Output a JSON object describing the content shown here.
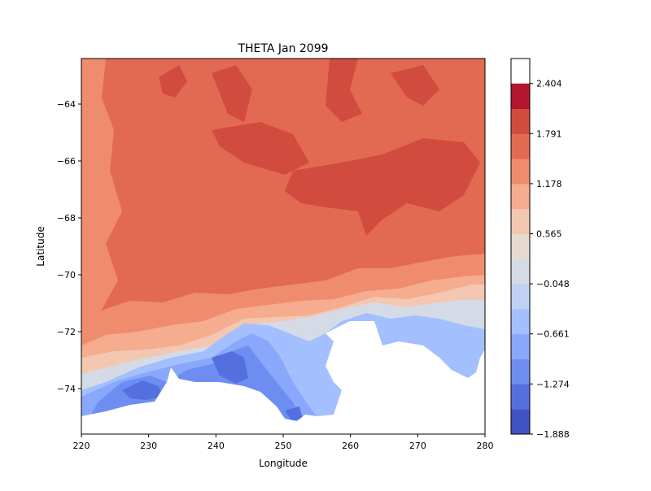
{
  "chart_data": {
    "type": "heatmap",
    "title": "THETA Jan 2099",
    "xlabel": "Longitude",
    "ylabel": "Latitude",
    "xlim": [
      220,
      280
    ],
    "ylim": [
      -75.6,
      -62.4
    ],
    "x_ticks": [
      {
        "value": 220,
        "label": "220"
      },
      {
        "value": 230,
        "label": "230"
      },
      {
        "value": 240,
        "label": "240"
      },
      {
        "value": 250,
        "label": "250"
      },
      {
        "value": 260,
        "label": "260"
      },
      {
        "value": 270,
        "label": "270"
      },
      {
        "value": 280,
        "label": "280"
      }
    ],
    "y_ticks": [
      {
        "value": -64,
        "label": "−64"
      },
      {
        "value": -66,
        "label": "−66"
      },
      {
        "value": -68,
        "label": "−68"
      },
      {
        "value": -70,
        "label": "−70"
      },
      {
        "value": -72,
        "label": "−72"
      },
      {
        "value": -74,
        "label": "−74"
      }
    ],
    "colorbar": {
      "range": [
        -1.888,
        2.71
      ],
      "levels": [
        -1.888,
        -1.581,
        -1.274,
        -0.968,
        -0.661,
        -0.355,
        -0.048,
        0.259,
        0.565,
        0.872,
        1.178,
        1.485,
        1.791,
        2.098,
        2.404,
        2.71
      ],
      "tick_labels": [
        {
          "value": -1.888,
          "label": "−1.888"
        },
        {
          "value": -1.274,
          "label": "−1.274"
        },
        {
          "value": -0.661,
          "label": "−0.661"
        },
        {
          "value": -0.048,
          "label": "−0.048"
        },
        {
          "value": 0.565,
          "label": "0.565"
        },
        {
          "value": 1.178,
          "label": "1.178"
        },
        {
          "value": 1.791,
          "label": "1.791"
        },
        {
          "value": 2.404,
          "label": "2.404"
        }
      ],
      "colors": [
        "#3f53c4",
        "#5470de",
        "#6d8df1",
        "#89a7fb",
        "#a3bffd",
        "#bfd2f6",
        "#d4dbe6",
        "#e6d9cf",
        "#f3c7b1",
        "#f6ac8e",
        "#f08c6e",
        "#e26a52",
        "#d24b3f",
        "#b4162d"
      ]
    },
    "colormap": "coolwarm",
    "description_regions": {
      "land_mask": "white region along southern coast (Antarctica)"
    }
  }
}
